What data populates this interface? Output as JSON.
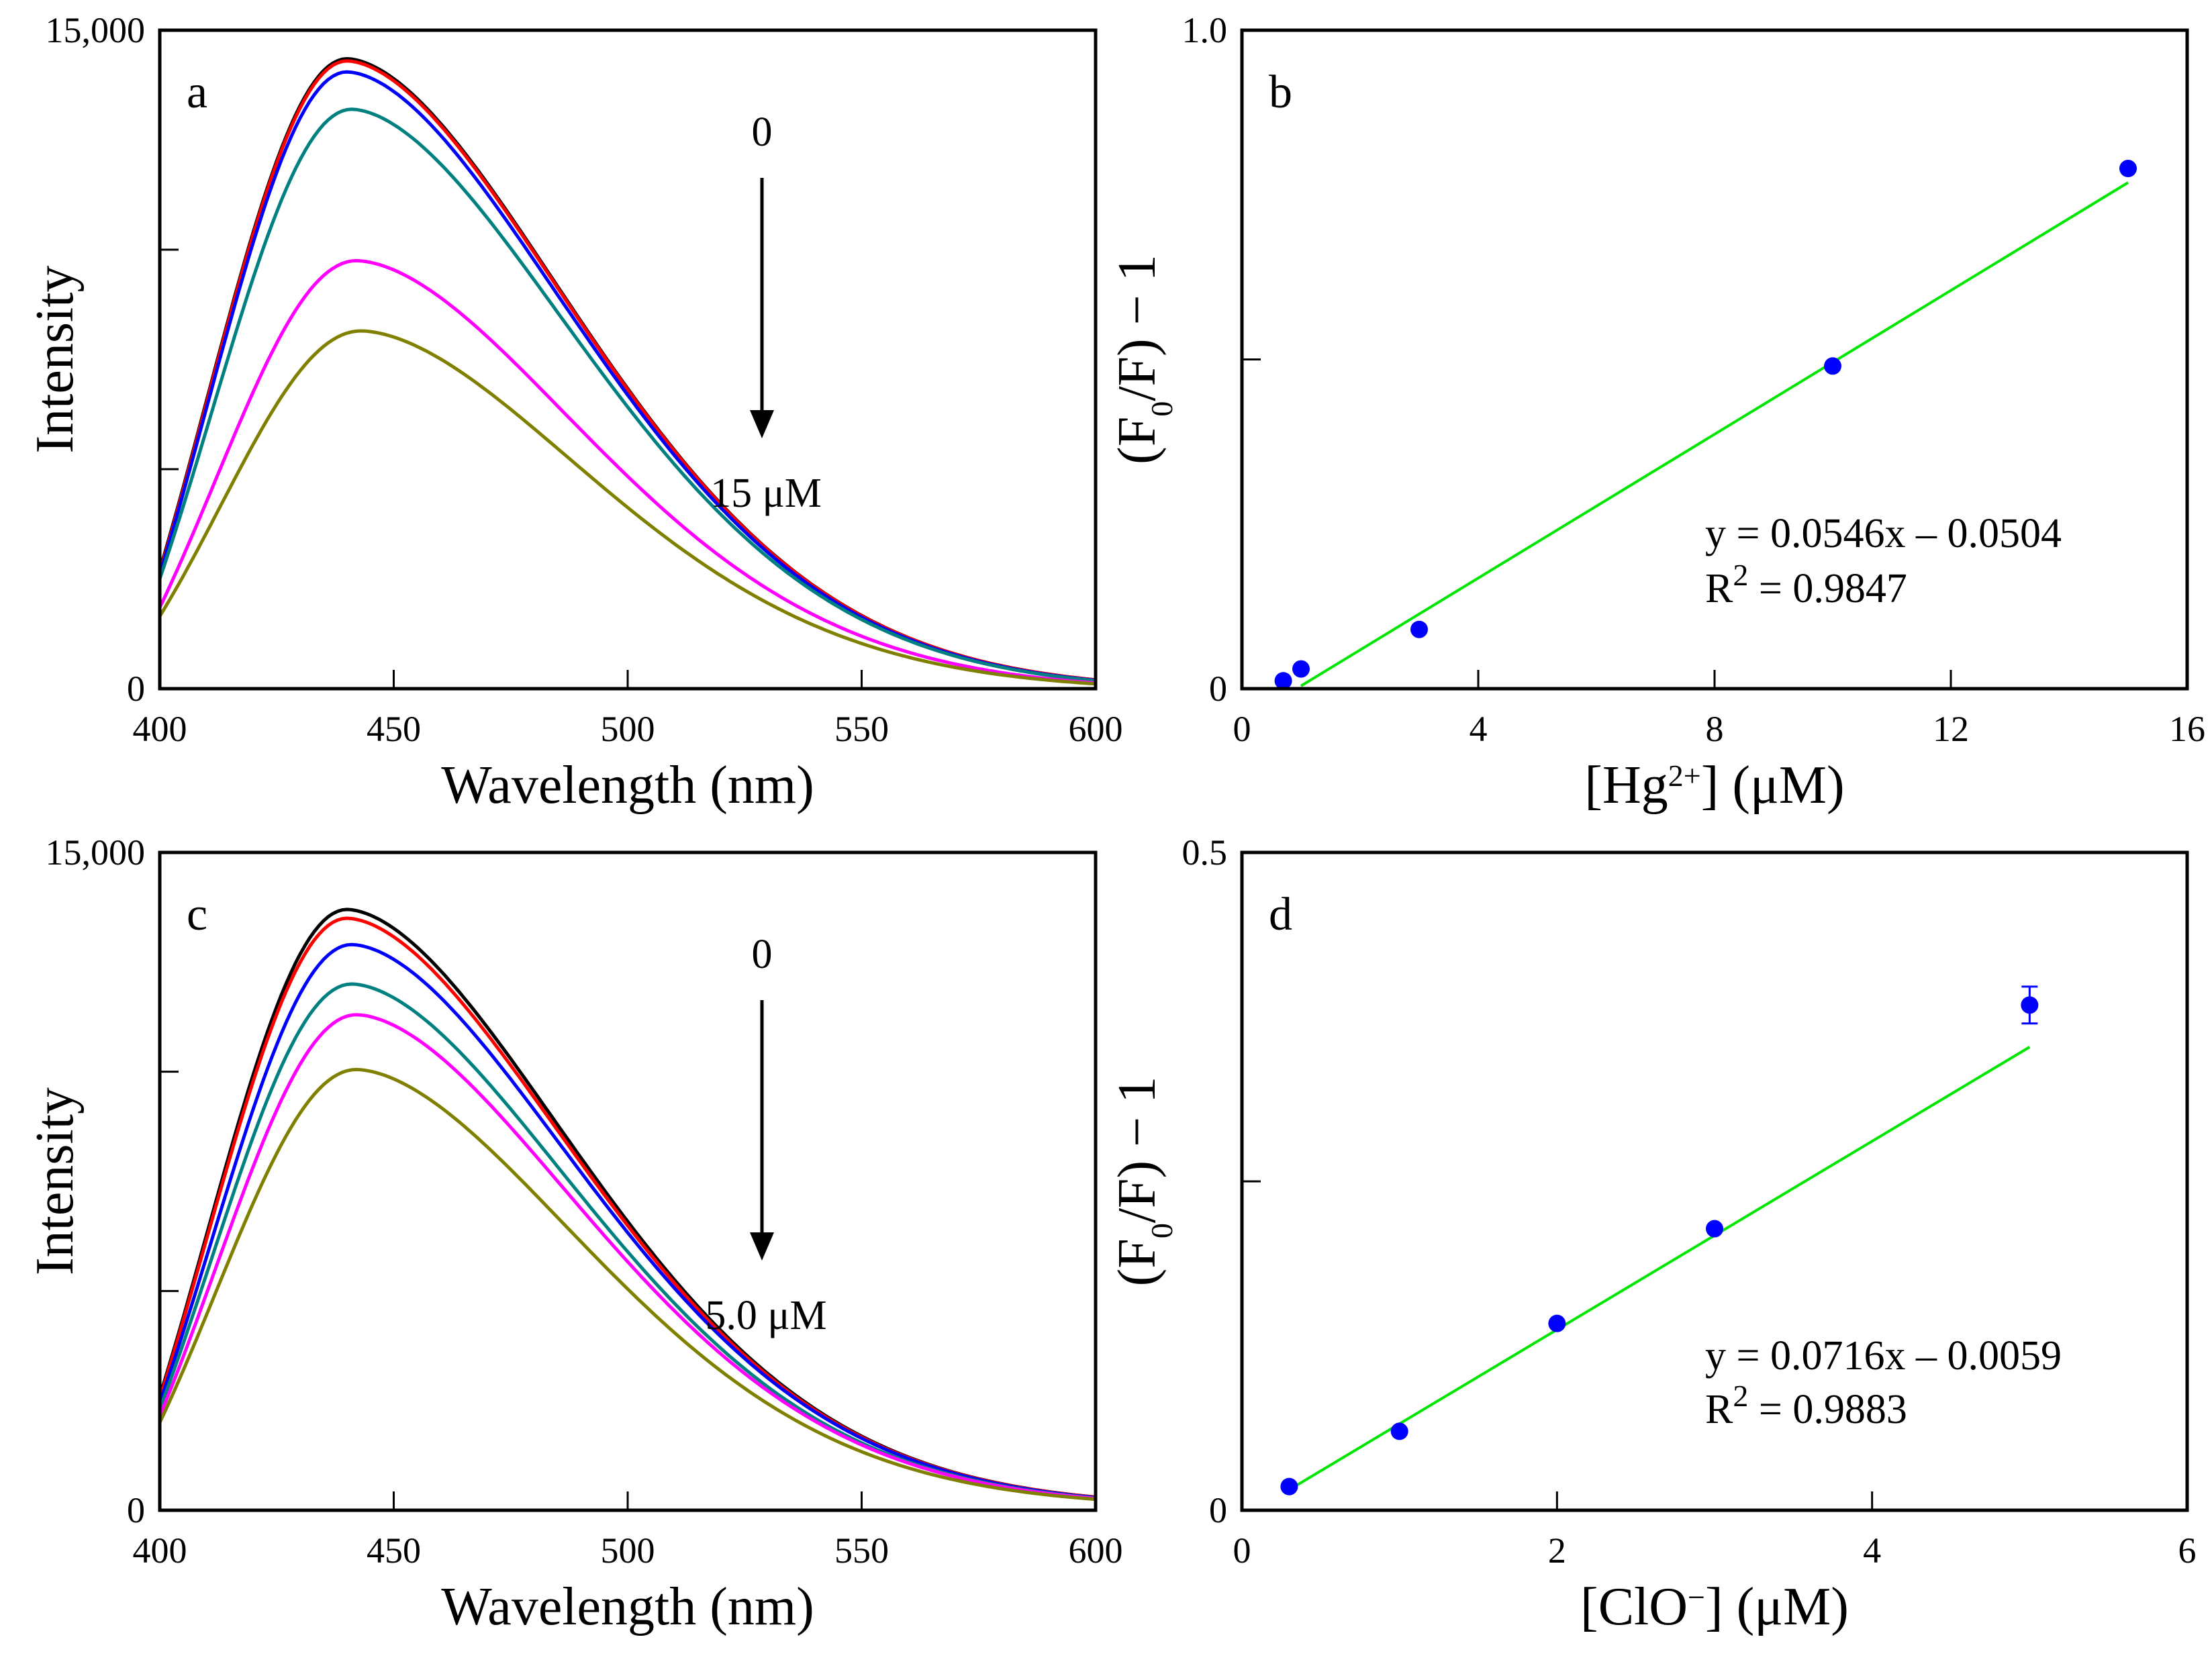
{
  "panels": [
    {
      "panel_label": "a",
      "type": "spectra",
      "xlabel": "Wavelength (nm)",
      "ylabel": "Intensity",
      "xlim": [
        400,
        600
      ],
      "ylim": [
        0,
        15000
      ],
      "xticks": [
        "400",
        "450",
        "500",
        "550",
        "600"
      ],
      "yticks": [
        "0",
        "15,000"
      ],
      "arrow_top_label": "0",
      "arrow_bottom_label": "15 μM",
      "series": [
        {
          "color": "#000000",
          "peak": 14350,
          "peak_wl": 440,
          "start": 2700,
          "end": 200
        },
        {
          "color": "#ff0000",
          "peak": 14300,
          "peak_wl": 440,
          "start": 2650,
          "end": 200
        },
        {
          "color": "#0000ff",
          "peak": 14050,
          "peak_wl": 440,
          "start": 2600,
          "end": 190
        },
        {
          "color": "#008080",
          "peak": 13200,
          "peak_wl": 441,
          "start": 2500,
          "end": 180
        },
        {
          "color": "#ff00ff",
          "peak": 9750,
          "peak_wl": 442,
          "start": 1850,
          "end": 130
        },
        {
          "color": "#808000",
          "peak": 8150,
          "peak_wl": 443,
          "start": 1650,
          "end": 110
        }
      ]
    },
    {
      "panel_label": "b",
      "type": "scatter",
      "xlabel_prefix": "[Hg",
      "xlabel_sup": "2+",
      "xlabel_suffix": "] (μM)",
      "ylabel_pre": "(F",
      "ylabel_sub": "0",
      "ylabel_post": "/F) − 1",
      "xlim": [
        0,
        16
      ],
      "ylim": [
        0,
        1.0
      ],
      "xticks": [
        0,
        4,
        8,
        12,
        16
      ],
      "xtick_labels": [
        "0",
        "4",
        "8",
        "12",
        "16"
      ],
      "yticks": [
        0,
        0.5,
        1.0
      ],
      "ytick_labels": [
        "0",
        "",
        "1.0"
      ],
      "points": [
        {
          "x": 0.7,
          "y": 0.012
        },
        {
          "x": 1.0,
          "y": 0.03
        },
        {
          "x": 3.0,
          "y": 0.09
        },
        {
          "x": 10.0,
          "y": 0.49
        },
        {
          "x": 15.0,
          "y": 0.79
        }
      ],
      "fit": {
        "slope": 0.0546,
        "intercept": -0.0504,
        "x_range": [
          1.0,
          15.0
        ]
      },
      "equation": "y = 0.0546x – 0.0504",
      "r2_prefix": "R",
      "r2_sup": "2",
      "r2_value": " = 0.9847"
    },
    {
      "panel_label": "c",
      "type": "spectra",
      "xlabel": "Wavelength (nm)",
      "ylabel": "Intensity",
      "xlim": [
        400,
        600
      ],
      "ylim": [
        0,
        15000
      ],
      "xticks": [
        "400",
        "450",
        "500",
        "550",
        "600"
      ],
      "yticks": [
        "0",
        "15,000"
      ],
      "arrow_top_label": "0",
      "arrow_bottom_label": "5.0 μM",
      "series": [
        {
          "color": "#000000",
          "peak": 13700,
          "peak_wl": 440,
          "start": 2600,
          "end": 300
        },
        {
          "color": "#ff0000",
          "peak": 13500,
          "peak_wl": 440,
          "start": 2550,
          "end": 300
        },
        {
          "color": "#0000ff",
          "peak": 12900,
          "peak_wl": 441,
          "start": 2450,
          "end": 290
        },
        {
          "color": "#008080",
          "peak": 12000,
          "peak_wl": 441,
          "start": 2300,
          "end": 280
        },
        {
          "color": "#ff00ff",
          "peak": 11300,
          "peak_wl": 442,
          "start": 2150,
          "end": 270
        },
        {
          "color": "#808000",
          "peak": 10050,
          "peak_wl": 442,
          "start": 2000,
          "end": 250
        }
      ]
    },
    {
      "panel_label": "d",
      "type": "scatter",
      "xlabel_prefix": "[ClO",
      "xlabel_sup": "−",
      "xlabel_suffix": "] (μM)",
      "ylabel_pre": "(F",
      "ylabel_sub": "0",
      "ylabel_post": "/F) − 1",
      "xlim": [
        0,
        6
      ],
      "ylim": [
        0,
        0.5
      ],
      "xticks": [
        0,
        2,
        4,
        6
      ],
      "xtick_labels": [
        "0",
        "2",
        "4",
        "6"
      ],
      "yticks": [
        0,
        0.25,
        0.5
      ],
      "ytick_labels": [
        "0",
        "",
        "0.5"
      ],
      "points": [
        {
          "x": 0.3,
          "y": 0.018
        },
        {
          "x": 1.0,
          "y": 0.06
        },
        {
          "x": 2.0,
          "y": 0.142
        },
        {
          "x": 3.0,
          "y": 0.214
        },
        {
          "x": 5.0,
          "y": 0.384,
          "err": 0.014
        }
      ],
      "fit": {
        "slope": 0.0716,
        "intercept": -0.0059,
        "x_range": [
          0.3,
          5.0
        ]
      },
      "equation": "y = 0.0716x – 0.0059",
      "r2_prefix": "R",
      "r2_sup": "2",
      "r2_value": " = 0.9883"
    }
  ],
  "chart_data": [
    {
      "type": "line",
      "title": "a",
      "xlabel": "Wavelength (nm)",
      "ylabel": "Intensity",
      "xlim": [
        400,
        600
      ],
      "ylim": [
        0,
        15000
      ],
      "series": [
        {
          "name": "0 μM (black)",
          "peak_x": 440,
          "peak_y": 14350
        },
        {
          "name": "red",
          "peak_x": 440,
          "peak_y": 14300
        },
        {
          "name": "blue",
          "peak_x": 440,
          "peak_y": 14050
        },
        {
          "name": "teal",
          "peak_x": 441,
          "peak_y": 13200
        },
        {
          "name": "magenta",
          "peak_x": 442,
          "peak_y": 9750
        },
        {
          "name": "15 μM (olive)",
          "peak_x": 443,
          "peak_y": 8150
        }
      ]
    },
    {
      "type": "scatter",
      "title": "b",
      "xlabel": "[Hg2+] (μM)",
      "ylabel": "(F0/F) − 1",
      "xlim": [
        0,
        16
      ],
      "ylim": [
        0,
        1.0
      ],
      "x": [
        0.7,
        1.0,
        3.0,
        10.0,
        15.0
      ],
      "y": [
        0.012,
        0.03,
        0.09,
        0.49,
        0.79
      ],
      "fit": "y = 0.0546x – 0.0504, R2 = 0.9847"
    },
    {
      "type": "line",
      "title": "c",
      "xlabel": "Wavelength (nm)",
      "ylabel": "Intensity",
      "xlim": [
        400,
        600
      ],
      "ylim": [
        0,
        15000
      ],
      "series": [
        {
          "name": "0 μM (black)",
          "peak_x": 440,
          "peak_y": 13700
        },
        {
          "name": "red",
          "peak_x": 440,
          "peak_y": 13500
        },
        {
          "name": "blue",
          "peak_x": 441,
          "peak_y": 12900
        },
        {
          "name": "teal",
          "peak_x": 441,
          "peak_y": 12000
        },
        {
          "name": "magenta",
          "peak_x": 442,
          "peak_y": 11300
        },
        {
          "name": "5.0 μM (olive)",
          "peak_x": 442,
          "peak_y": 10050
        }
      ]
    },
    {
      "type": "scatter",
      "title": "d",
      "xlabel": "[ClO−] (μM)",
      "ylabel": "(F0/F) − 1",
      "xlim": [
        0,
        6
      ],
      "ylim": [
        0,
        0.5
      ],
      "x": [
        0.3,
        1.0,
        2.0,
        3.0,
        5.0
      ],
      "y": [
        0.018,
        0.06,
        0.142,
        0.214,
        0.384
      ],
      "fit": "y = 0.0716x – 0.0059, R2 = 0.9883"
    }
  ]
}
